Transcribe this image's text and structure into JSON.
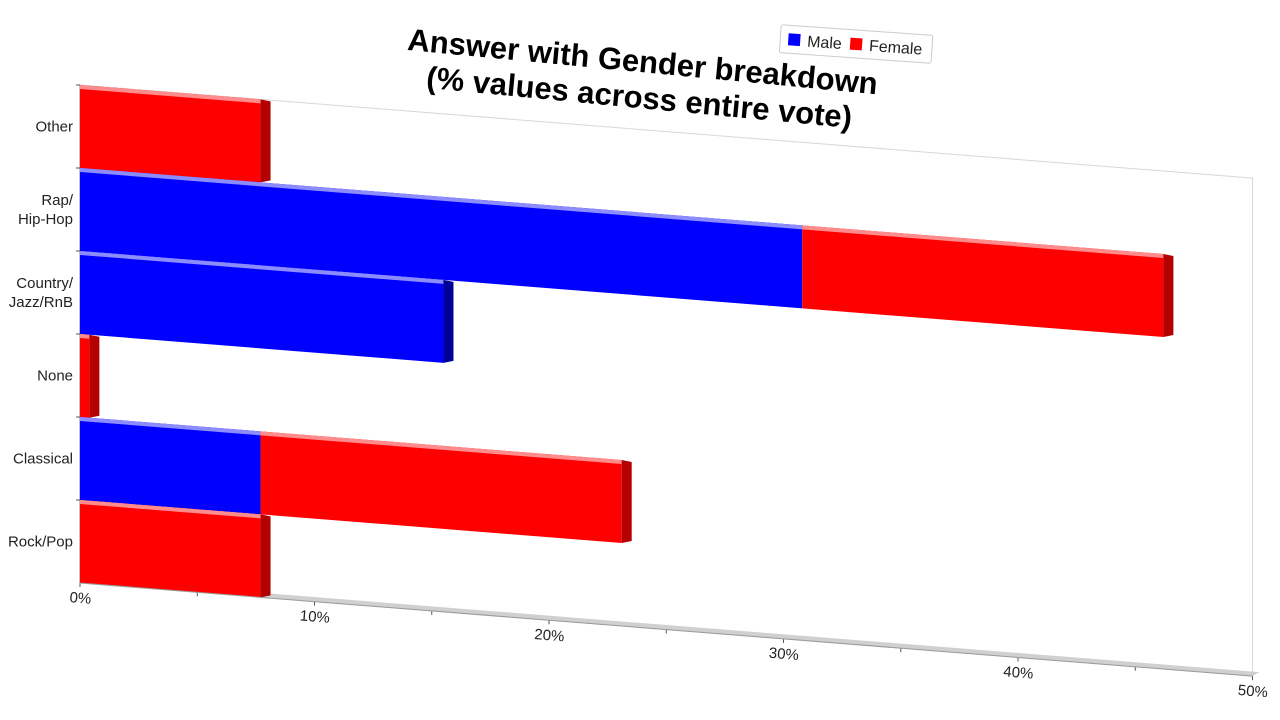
{
  "chart_data": {
    "type": "bar",
    "orientation": "horizontal",
    "stacked": true,
    "title": "Answer with Gender breakdown",
    "subtitle": "(% values across entire vote)",
    "categories": [
      "Other",
      "Rap/ Hip-Hop",
      "Country/ Jazz/RnB",
      "None",
      "Classical",
      "Rock/Pop"
    ],
    "category_lines": [
      [
        "Other"
      ],
      [
        "Rap/",
        "Hip-Hop"
      ],
      [
        "Country/",
        "Jazz/RnB"
      ],
      [
        "None"
      ],
      [
        "Classical"
      ],
      [
        "Rock/Pop"
      ]
    ],
    "series": [
      {
        "name": "Male",
        "color": "#0000ff",
        "side_color": "#000099",
        "values": [
          0,
          30.8,
          15.5,
          0,
          7.7,
          0
        ]
      },
      {
        "name": "Female",
        "color": "#ff0000",
        "side_color": "#b30000",
        "values": [
          7.7,
          15.4,
          0,
          0.4,
          15.4,
          7.7
        ]
      }
    ],
    "xlim": [
      0,
      50
    ],
    "xticks": [
      "0%",
      "10%",
      "20%",
      "30%",
      "40%",
      "50%"
    ],
    "xlabel": "",
    "ylabel": "",
    "grid": false,
    "legend_position": "top-right",
    "style": "3d-perspective"
  }
}
